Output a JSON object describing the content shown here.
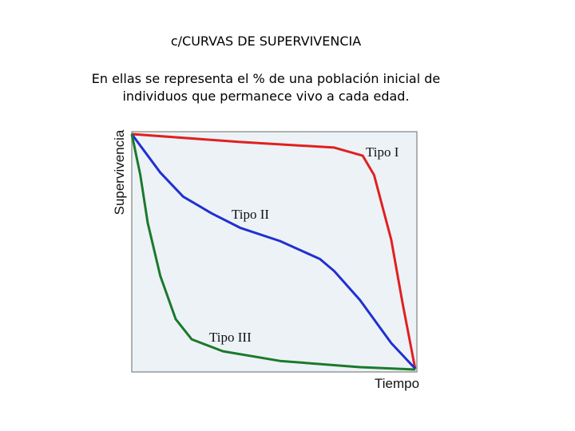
{
  "title": "c/CURVAS DE SUPERVIVENCIA",
  "text_lines": [
    "En ellas se representa el % de una población inicial de",
    "individuos que permanece vivo a cada edad."
  ],
  "chart_data": {
    "type": "line",
    "y_label": "Supervivencia",
    "x_label": "Tiempo",
    "xlim": [
      0,
      100
    ],
    "ylim": [
      0,
      100
    ],
    "grid": false,
    "series": [
      {
        "name": "Tipo I",
        "color": "#e02020",
        "x": [
          0,
          38,
          71,
          81,
          85,
          91,
          95,
          99.4
        ],
        "values": [
          99,
          95.7,
          93.4,
          90,
          82,
          55,
          28.6,
          1.3
        ]
      },
      {
        "name": "Tipo II",
        "color": "#2030d0",
        "x": [
          0,
          10,
          18,
          28,
          38,
          52,
          66,
          71,
          80,
          91,
          99.5
        ],
        "values": [
          99,
          83,
          73,
          66,
          60,
          54.5,
          47,
          42,
          30,
          12,
          1.3
        ]
      },
      {
        "name": "Tipo III",
        "color": "#1a7a2a",
        "x": [
          0,
          3,
          5.6,
          10,
          15.4,
          21,
          32,
          52,
          80,
          99.5
        ],
        "values": [
          99,
          82,
          62,
          40,
          22,
          13.6,
          8.6,
          4.6,
          2,
          1
        ]
      }
    ]
  }
}
